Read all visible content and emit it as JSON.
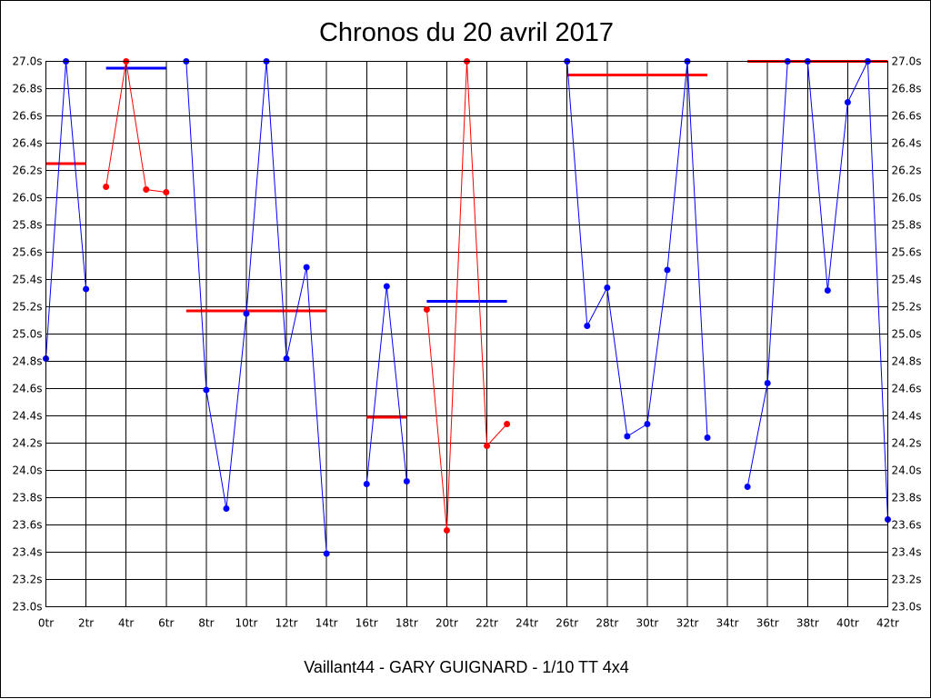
{
  "chart_data": {
    "type": "line",
    "title": "Chronos du 20 avril 2017",
    "footer": "Vaillant44 - GARY GUIGNARD - 1/10 TT 4x4",
    "xlabel": "",
    "ylabel": "",
    "xlim": [
      0,
      42
    ],
    "ylim": [
      23.0,
      27.0
    ],
    "grid": true,
    "x_ticks": [
      0,
      2,
      4,
      6,
      8,
      10,
      12,
      14,
      16,
      18,
      20,
      22,
      24,
      26,
      28,
      30,
      32,
      34,
      36,
      38,
      40,
      42
    ],
    "x_tick_labels": [
      "0tr",
      "2tr",
      "4tr",
      "6tr",
      "8tr",
      "10tr",
      "12tr",
      "14tr",
      "16tr",
      "18tr",
      "20tr",
      "22tr",
      "24tr",
      "26tr",
      "28tr",
      "30tr",
      "32tr",
      "34tr",
      "36tr",
      "38tr",
      "40tr",
      "42tr"
    ],
    "y_ticks": [
      23.0,
      23.2,
      23.4,
      23.6,
      23.8,
      24.0,
      24.2,
      24.4,
      24.6,
      24.8,
      25.0,
      25.2,
      25.4,
      25.6,
      25.8,
      26.0,
      26.2,
      26.4,
      26.6,
      26.8,
      27.0
    ],
    "y_tick_labels_left": [
      "23.0s",
      "23.2s",
      "23.4s",
      "23.6s",
      "23.8s",
      "24.0s",
      "24.2s",
      "24.4s",
      "24.6s",
      "24.8s",
      "25.0s",
      "25.2s",
      "25.4s",
      "25.6s",
      "25.8s",
      "26.0s",
      "26.2s",
      "26.4s",
      "26.6s",
      "26.8s",
      "27.0s"
    ],
    "y_tick_labels_right": [
      "23.0s",
      "23.2s",
      "23.4s",
      "23.6s",
      "23.8s",
      "24.0s",
      "24.2s",
      "24.4s",
      "24.6s",
      "24.8s",
      "25.0s",
      "25.2s",
      "25.4s",
      "25.6s",
      "25.8s",
      "26.0s",
      "26.2s",
      "26.4s",
      "26.6s",
      "26.8s",
      "27.0s"
    ],
    "colors": {
      "blue": "#0000ff",
      "red": "#ff0000"
    },
    "segments": [
      {
        "color": "#0000ff",
        "x": [
          0,
          1,
          2
        ],
        "values": [
          24.82,
          27.0,
          25.33
        ]
      },
      {
        "color": "#ff0000",
        "x": [
          3,
          4,
          5,
          6
        ],
        "values": [
          26.08,
          27.0,
          26.06,
          26.04
        ]
      },
      {
        "color": "#0000ff",
        "x": [
          7,
          8,
          9,
          10,
          11,
          12,
          13,
          14
        ],
        "values": [
          27.0,
          24.59,
          23.72,
          25.15,
          27.0,
          24.82,
          25.49,
          23.39
        ]
      },
      {
        "color": "#0000ff",
        "x": [
          16,
          17,
          18
        ],
        "values": [
          23.9,
          25.35,
          23.92
        ]
      },
      {
        "color": "#ff0000",
        "x": [
          19,
          20,
          21,
          22,
          23
        ],
        "values": [
          25.18,
          23.56,
          27.0,
          24.18,
          24.34
        ]
      },
      {
        "color": "#0000ff",
        "x": [
          26,
          27,
          28,
          29,
          30,
          31,
          32,
          33
        ],
        "values": [
          27.0,
          25.06,
          25.34,
          24.25,
          24.34,
          25.47,
          27.0,
          24.24
        ]
      },
      {
        "color": "#0000ff",
        "x": [
          35,
          36,
          37,
          38,
          39,
          40,
          41,
          42
        ],
        "values": [
          23.88,
          24.64,
          27.0,
          27.0,
          25.32,
          26.7,
          27.0,
          23.64
        ]
      }
    ],
    "average_lines": [
      {
        "color": "#ff0000",
        "x": [
          0,
          2
        ],
        "value": 26.25
      },
      {
        "color": "#0000ff",
        "x": [
          3,
          6
        ],
        "value": 26.95
      },
      {
        "color": "#ff0000",
        "x": [
          7,
          14
        ],
        "value": 25.17
      },
      {
        "color": "#ff0000",
        "x": [
          16,
          18
        ],
        "value": 24.39
      },
      {
        "color": "#0000ff",
        "x": [
          19,
          23
        ],
        "value": 25.24
      },
      {
        "color": "#ff0000",
        "x": [
          26,
          33
        ],
        "value": 26.9
      },
      {
        "color": "#ff0000",
        "x": [
          35,
          42
        ],
        "value": 27.0
      }
    ]
  }
}
